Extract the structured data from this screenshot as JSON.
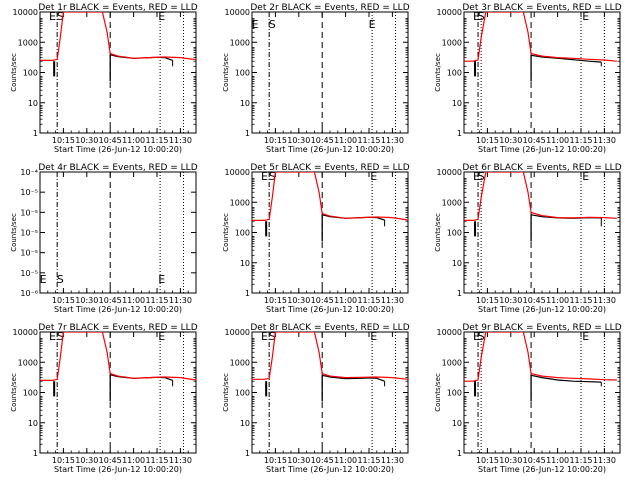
{
  "figure": {
    "background": "#ffffff",
    "ylabel": "Counts/sec",
    "xlabel": "Start Time (26-Jun-12 10:00:20)"
  },
  "chart_data": [
    {
      "type": "line",
      "title": "Det 1r BLACK = Events, RED = LLD",
      "xlabel": "Start Time (26-Jun-12 10:00:20)",
      "ylabel": "Counts/sec",
      "yscale": "log",
      "xlim": [
        "10:00",
        "11:40"
      ],
      "ylim": [
        1,
        15000
      ],
      "xticks": [
        "10:15",
        "10:30",
        "10:45",
        "11:00",
        "11:15",
        "11:30"
      ],
      "yticks": [
        "1",
        "10",
        "100",
        "1000",
        "10000"
      ],
      "markers": {
        "S": "10:13",
        "E1": "10:08",
        "E2": "11:18"
      },
      "vlines": [
        {
          "at": "10:11",
          "style": "dash-dot"
        },
        {
          "at": "10:45",
          "style": "dash"
        },
        {
          "at": "11:17",
          "style": "dot"
        },
        {
          "at": "11:32",
          "style": "dot"
        }
      ],
      "series": [
        {
          "name": "Events",
          "color": "#000000",
          "x": [
            "10:45",
            "10:50",
            "11:00",
            "11:10",
            "11:15",
            "11:20",
            "11:25"
          ],
          "y": [
            500,
            430,
            380,
            400,
            410,
            400,
            320
          ]
        },
        {
          "name": "LLD",
          "color": "#ff0000",
          "x": [
            "10:00",
            "10:08",
            "10:11",
            "10:13",
            "10:15",
            "10:40",
            "10:43",
            "10:45",
            "10:50",
            "11:00",
            "11:10",
            "11:20",
            "11:30",
            "11:40"
          ],
          "y": [
            320,
            320,
            350,
            2000,
            15000,
            15000,
            3000,
            550,
            450,
            380,
            400,
            420,
            400,
            340
          ]
        }
      ]
    },
    {
      "type": "line",
      "title": "Det 2r BLACK = Events, RED = LLD",
      "xlabel": "Start Time (26-Jun-12 10:00:20)",
      "ylabel": "Counts/sec",
      "yscale": "log",
      "xlim": [
        "10:00",
        "11:40"
      ],
      "ylim": [
        1,
        15000
      ],
      "xticks": [
        "10:15",
        "10:30",
        "10:45",
        "11:00",
        "11:15",
        "11:30"
      ],
      "yticks": [
        "1",
        "10",
        "100",
        "1000",
        "10000"
      ],
      "markers": {
        "S": "10:13",
        "E1": "10:02",
        "E2": "11:17"
      },
      "vlines": [
        {
          "at": "10:11",
          "style": "dash-dot"
        },
        {
          "at": "10:45",
          "style": "dash"
        },
        {
          "at": "11:17",
          "style": "dot"
        },
        {
          "at": "11:32",
          "style": "dot"
        }
      ],
      "series": []
    },
    {
      "type": "line",
      "title": "Det 3r BLACK = Events, RED = LLD",
      "xlabel": "Start Time (26-Jun-12 10:00:20)",
      "ylabel": "Counts/sec",
      "yscale": "log",
      "xlim": [
        "10:00",
        "11:40"
      ],
      "ylim": [
        1,
        15000
      ],
      "xticks": [
        "10:15",
        "10:30",
        "10:45",
        "11:00",
        "11:15",
        "11:30"
      ],
      "yticks": [
        "1",
        "10",
        "100",
        "1000",
        "10000"
      ],
      "markers": {
        "S": "10:11",
        "E1": "10:08",
        "E2": "11:18"
      },
      "vlines": [
        {
          "at": "10:09",
          "style": "dash-dot"
        },
        {
          "at": "10:11",
          "style": "dot"
        },
        {
          "at": "10:43",
          "style": "dash"
        },
        {
          "at": "11:15",
          "style": "dot"
        },
        {
          "at": "11:30",
          "style": "dot"
        }
      ],
      "series": [
        {
          "name": "Events",
          "color": "#000000",
          "x": [
            "10:43",
            "10:50",
            "11:00",
            "11:10",
            "11:20",
            "11:28"
          ],
          "y": [
            480,
            420,
            380,
            340,
            300,
            280
          ]
        },
        {
          "name": "LLD",
          "color": "#ff0000",
          "x": [
            "10:00",
            "10:06",
            "10:09",
            "10:11",
            "10:14",
            "10:38",
            "10:41",
            "10:43",
            "10:50",
            "11:00",
            "11:10",
            "11:20",
            "11:30",
            "11:38"
          ],
          "y": [
            300,
            300,
            330,
            2000,
            15000,
            15000,
            3000,
            550,
            450,
            400,
            380,
            350,
            330,
            300
          ]
        }
      ]
    },
    {
      "type": "line",
      "title": "Det 4r BLACK = Events, RED = LLD",
      "xlabel": "Start Time (26-Jun-12 10:00:20)",
      "ylabel": "Counts/sec",
      "yscale": "log",
      "xlim": [
        "10:00",
        "11:40"
      ],
      "ylim": [
        1e-06,
        0.0001
      ],
      "xticks": [
        "10:15",
        "10:30",
        "10:45",
        "11:00",
        "11:15",
        "11:30"
      ],
      "yticks": [
        "10⁻⁶",
        "10⁻⁵",
        "10⁻⁵",
        "10⁻⁵",
        "10⁻⁵",
        "10⁻⁵",
        "10⁻⁴"
      ],
      "markers": {
        "S": "10:13",
        "E1": "10:02",
        "E2": "11:18"
      },
      "vlines": [
        {
          "at": "10:11",
          "style": "dash-dot"
        },
        {
          "at": "10:45",
          "style": "dash"
        },
        {
          "at": "11:17",
          "style": "dot"
        },
        {
          "at": "11:32",
          "style": "dot"
        }
      ],
      "series": []
    },
    {
      "type": "line",
      "title": "Det 5r BLACK = Events, RED = LLD",
      "xlabel": "Start Time (26-Jun-12 10:00:20)",
      "ylabel": "Counts/sec",
      "yscale": "log",
      "xlim": [
        "10:00",
        "11:40"
      ],
      "ylim": [
        1,
        15000
      ],
      "xticks": [
        "10:15",
        "10:30",
        "10:45",
        "11:00",
        "11:15",
        "11:30"
      ],
      "yticks": [
        "1",
        "10",
        "100",
        "1000",
        "10000"
      ],
      "markers": {
        "S": "10:13",
        "E1": "10:08",
        "E2": "11:18"
      },
      "vlines": [
        {
          "at": "10:11",
          "style": "dash-dot"
        },
        {
          "at": "10:45",
          "style": "dash"
        },
        {
          "at": "11:17",
          "style": "dot"
        },
        {
          "at": "11:32",
          "style": "dot"
        }
      ],
      "series": [
        {
          "name": "Events",
          "color": "#000000",
          "x": [
            "10:45",
            "10:50",
            "11:00",
            "11:10",
            "11:15",
            "11:20",
            "11:25"
          ],
          "y": [
            500,
            430,
            380,
            400,
            410,
            400,
            330
          ]
        },
        {
          "name": "LLD",
          "color": "#ff0000",
          "x": [
            "10:00",
            "10:08",
            "10:11",
            "10:13",
            "10:15",
            "10:40",
            "10:43",
            "10:45",
            "10:50",
            "11:00",
            "11:10",
            "11:20",
            "11:30",
            "11:40"
          ],
          "y": [
            320,
            320,
            350,
            2000,
            15000,
            15000,
            3000,
            550,
            450,
            380,
            400,
            420,
            400,
            330
          ]
        }
      ]
    },
    {
      "type": "line",
      "title": "Det 6r BLACK = Events, RED = LLD",
      "xlabel": "Start Time (26-Jun-12 10:00:20)",
      "ylabel": "Counts/sec",
      "yscale": "log",
      "xlim": [
        "10:00",
        "11:40"
      ],
      "ylim": [
        1,
        15000
      ],
      "xticks": [
        "10:15",
        "10:30",
        "10:45",
        "11:00",
        "11:15",
        "11:30"
      ],
      "yticks": [
        "1",
        "10",
        "100",
        "1000",
        "10000"
      ],
      "markers": {
        "S": "10:11",
        "E1": "10:08",
        "E2": "11:18"
      },
      "vlines": [
        {
          "at": "10:09",
          "style": "dash-dot"
        },
        {
          "at": "10:11",
          "style": "dot"
        },
        {
          "at": "10:43",
          "style": "dash"
        },
        {
          "at": "11:15",
          "style": "dot"
        },
        {
          "at": "11:30",
          "style": "dot"
        }
      ],
      "series": [
        {
          "name": "Events",
          "color": "#000000",
          "x": [
            "10:43",
            "10:50",
            "11:00",
            "11:10",
            "11:20",
            "11:28"
          ],
          "y": [
            500,
            430,
            390,
            380,
            400,
            390
          ]
        },
        {
          "name": "LLD",
          "color": "#ff0000",
          "x": [
            "10:00",
            "10:06",
            "10:09",
            "10:11",
            "10:14",
            "10:38",
            "10:41",
            "10:43",
            "10:50",
            "11:00",
            "11:10",
            "11:20",
            "11:30",
            "11:38"
          ],
          "y": [
            320,
            320,
            350,
            2000,
            15000,
            15000,
            3000,
            600,
            470,
            400,
            390,
            410,
            400,
            380
          ]
        }
      ]
    },
    {
      "type": "line",
      "title": "Det 7r BLACK = Events, RED = LLD",
      "xlabel": "Start Time (26-Jun-12 10:00:20)",
      "ylabel": "Counts/sec",
      "yscale": "log",
      "xlim": [
        "10:00",
        "11:40"
      ],
      "ylim": [
        1,
        15000
      ],
      "xticks": [
        "10:15",
        "10:30",
        "10:45",
        "11:00",
        "11:15",
        "11:30"
      ],
      "yticks": [
        "1",
        "10",
        "100",
        "1000",
        "10000"
      ],
      "markers": {
        "S": "10:13",
        "E1": "10:08",
        "E2": "11:18"
      },
      "vlines": [
        {
          "at": "10:11",
          "style": "dash-dot"
        },
        {
          "at": "10:45",
          "style": "dash"
        },
        {
          "at": "11:17",
          "style": "dot"
        },
        {
          "at": "11:32",
          "style": "dot"
        }
      ],
      "series": [
        {
          "name": "Events",
          "color": "#000000",
          "x": [
            "10:45",
            "10:50",
            "11:00",
            "11:10",
            "11:15",
            "11:20",
            "11:25"
          ],
          "y": [
            500,
            430,
            380,
            400,
            410,
            400,
            320
          ]
        },
        {
          "name": "LLD",
          "color": "#ff0000",
          "x": [
            "10:00",
            "10:08",
            "10:11",
            "10:13",
            "10:15",
            "10:40",
            "10:43",
            "10:45",
            "10:50",
            "11:00",
            "11:10",
            "11:20",
            "11:30",
            "11:40"
          ],
          "y": [
            320,
            320,
            350,
            2000,
            15000,
            15000,
            3000,
            550,
            450,
            380,
            400,
            420,
            400,
            330
          ]
        }
      ]
    },
    {
      "type": "line",
      "title": "Det 8r BLACK = Events, RED = LLD",
      "xlabel": "Start Time (26-Jun-12 10:00:20)",
      "ylabel": "Counts/sec",
      "yscale": "log",
      "xlim": [
        "10:00",
        "11:40"
      ],
      "ylim": [
        1,
        15000
      ],
      "xticks": [
        "10:15",
        "10:30",
        "10:45",
        "11:00",
        "11:15",
        "11:30"
      ],
      "yticks": [
        "1",
        "10",
        "100",
        "1000",
        "10000"
      ],
      "markers": {
        "S": "10:13",
        "E1": "10:08",
        "E2": "11:18"
      },
      "vlines": [
        {
          "at": "10:11",
          "style": "dash-dot"
        },
        {
          "at": "10:45",
          "style": "dash"
        },
        {
          "at": "11:17",
          "style": "dot"
        },
        {
          "at": "11:32",
          "style": "dot"
        }
      ],
      "series": [
        {
          "name": "Events",
          "color": "#000000",
          "x": [
            "10:45",
            "10:50",
            "11:00",
            "11:10",
            "11:15",
            "11:20",
            "11:25"
          ],
          "y": [
            480,
            420,
            370,
            380,
            390,
            380,
            300
          ]
        },
        {
          "name": "LLD",
          "color": "#ff0000",
          "x": [
            "10:00",
            "10:08",
            "10:11",
            "10:13",
            "10:15",
            "10:40",
            "10:43",
            "10:45",
            "10:50",
            "11:00",
            "11:10",
            "11:20",
            "11:30",
            "11:40"
          ],
          "y": [
            350,
            350,
            380,
            2000,
            15000,
            15000,
            3000,
            550,
            450,
            400,
            410,
            420,
            400,
            350
          ]
        }
      ]
    },
    {
      "type": "line",
      "title": "Det 9r BLACK = Events, RED = LLD",
      "xlabel": "Start Time (26-Jun-12 10:00:20)",
      "ylabel": "Counts/sec",
      "yscale": "log",
      "xlim": [
        "10:00",
        "11:40"
      ],
      "ylim": [
        1,
        15000
      ],
      "xticks": [
        "10:15",
        "10:30",
        "10:45",
        "11:00",
        "11:15",
        "11:30"
      ],
      "yticks": [
        "1",
        "10",
        "100",
        "1000",
        "10000"
      ],
      "markers": {
        "S": "10:11",
        "E1": "10:08",
        "E2": "11:18"
      },
      "vlines": [
        {
          "at": "10:09",
          "style": "dash-dot"
        },
        {
          "at": "10:11",
          "style": "dot"
        },
        {
          "at": "10:43",
          "style": "dash"
        },
        {
          "at": "11:15",
          "style": "dot"
        },
        {
          "at": "11:30",
          "style": "dot"
        }
      ],
      "series": [
        {
          "name": "Events",
          "color": "#000000",
          "x": [
            "10:43",
            "10:50",
            "11:00",
            "11:10",
            "11:20",
            "11:28"
          ],
          "y": [
            480,
            400,
            330,
            300,
            290,
            280
          ]
        },
        {
          "name": "LLD",
          "color": "#ff0000",
          "x": [
            "10:00",
            "10:06",
            "10:09",
            "10:11",
            "10:14",
            "10:38",
            "10:41",
            "10:43",
            "10:50",
            "11:00",
            "11:10",
            "11:20",
            "11:30",
            "11:38"
          ],
          "y": [
            300,
            300,
            330,
            2000,
            15000,
            15000,
            3000,
            550,
            450,
            400,
            380,
            360,
            340,
            330
          ]
        }
      ]
    }
  ]
}
